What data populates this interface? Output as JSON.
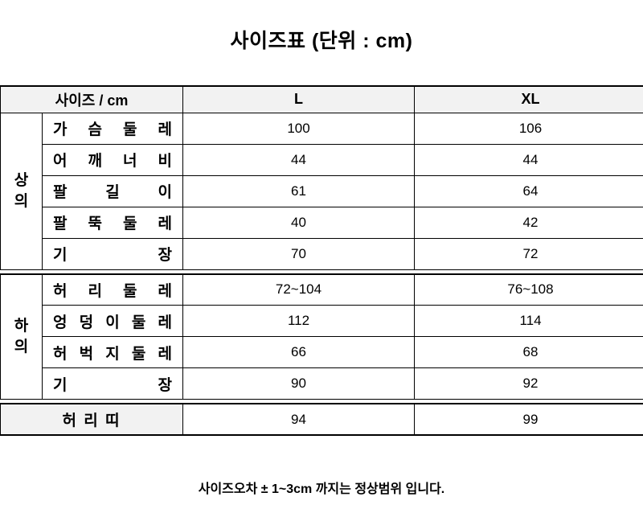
{
  "page": {
    "title": "사이즈표 (단위 : cm)",
    "footer_note": "사이즈오차 ± 1~3cm 까지는 정상범위 입니다."
  },
  "table": {
    "header": {
      "label_col": "사이즈 / cm",
      "size_columns": [
        "L",
        "XL"
      ]
    },
    "sections": [
      {
        "group": "상\n의",
        "rows": [
          {
            "label": "가 슴 둘 레",
            "L": "100",
            "XL": "106"
          },
          {
            "label": "어 깨 너 비",
            "L": "44",
            "XL": "44"
          },
          {
            "label": "팔 길 이",
            "L": "61",
            "XL": "64"
          },
          {
            "label": "팔 뚝 둘 레",
            "L": "40",
            "XL": "42"
          },
          {
            "label": "기 장",
            "L": "70",
            "XL": "72"
          }
        ]
      },
      {
        "group": "하\n의",
        "rows": [
          {
            "label": "허 리 둘 레",
            "L": "72~104",
            "XL": "76~108"
          },
          {
            "label": "엉 덩 이 둘 레",
            "L": "112",
            "XL": "114"
          },
          {
            "label": "허 벅 지 둘 레",
            "L": "66",
            "XL": "68"
          },
          {
            "label": "기 장",
            "L": "90",
            "XL": "92"
          }
        ]
      }
    ],
    "belt_row": {
      "label": "허 리 띠",
      "L": "94",
      "XL": "99"
    }
  },
  "colors": {
    "accent_fill": "#f2f2f2",
    "border": "#000000",
    "text": "#000000"
  }
}
